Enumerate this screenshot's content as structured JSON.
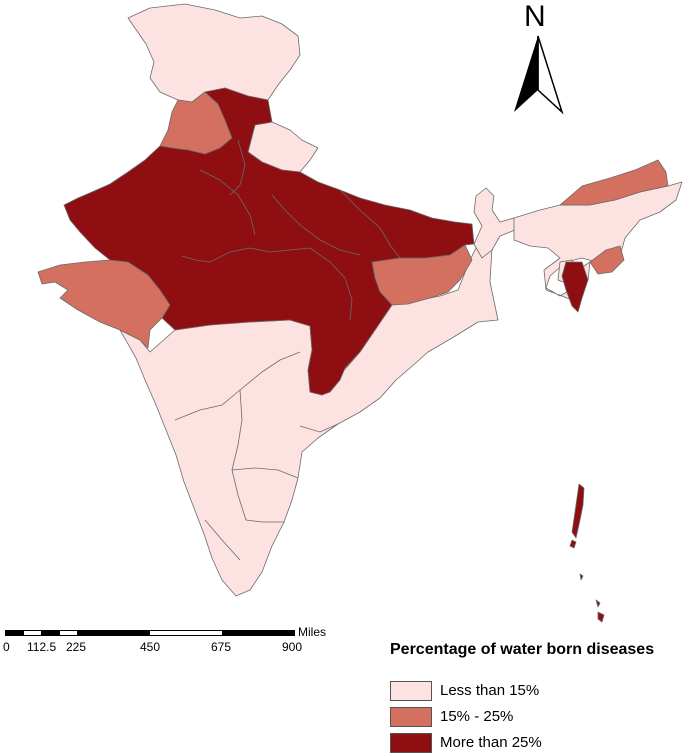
{
  "map": {
    "north_label": "N",
    "scale_bar": {
      "unit": "Miles",
      "ticks": [
        "0",
        "112.5",
        "225",
        "450",
        "675",
        "900"
      ]
    },
    "legend": {
      "title": "Percentage of water born diseases",
      "items": [
        {
          "label": "Less than 15%",
          "color": "#fde2e2"
        },
        {
          "label": "15% - 25%",
          "color": "#d4705f"
        },
        {
          "label": "More than 25%",
          "color": "#8e0e12"
        }
      ]
    },
    "colors": {
      "less_than_15": "#fde2e2",
      "range_15_25": "#d4705f",
      "more_than_25": "#8e0e12",
      "border": "#6b6b6b"
    }
  }
}
